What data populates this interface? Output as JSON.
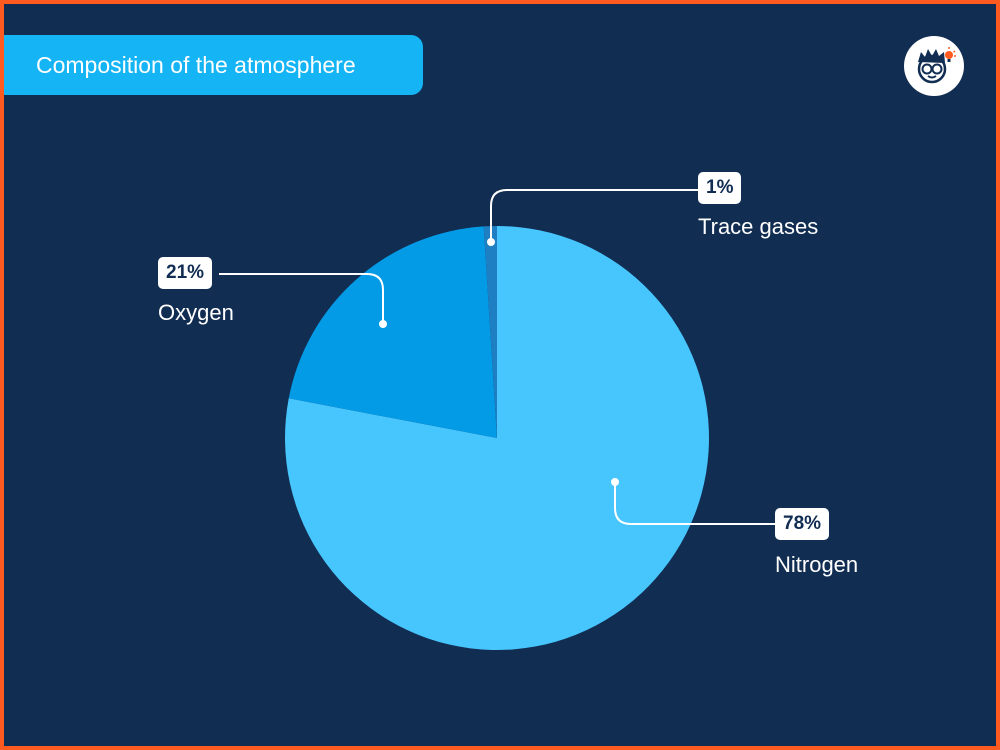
{
  "title": "Composition of the atmosphere",
  "logo_icon": "boy-with-glasses-lightbulb-icon",
  "colors": {
    "background": "#112d52",
    "border": "#ff5a1f",
    "title_bg": "#14b4f5",
    "text": "#ffffff",
    "value_text": "#112d52"
  },
  "chart_data": {
    "type": "pie",
    "title": "Composition of the atmosphere",
    "slices": [
      {
        "label": "Nitrogen",
        "value": 78,
        "value_label": "78%",
        "color": "#47c5fd"
      },
      {
        "label": "Oxygen",
        "value": 21,
        "value_label": "21%",
        "color": "#039be6"
      },
      {
        "label": "Trace gases",
        "value": 1,
        "value_label": "1%",
        "color": "#1f7fc3"
      }
    ]
  }
}
